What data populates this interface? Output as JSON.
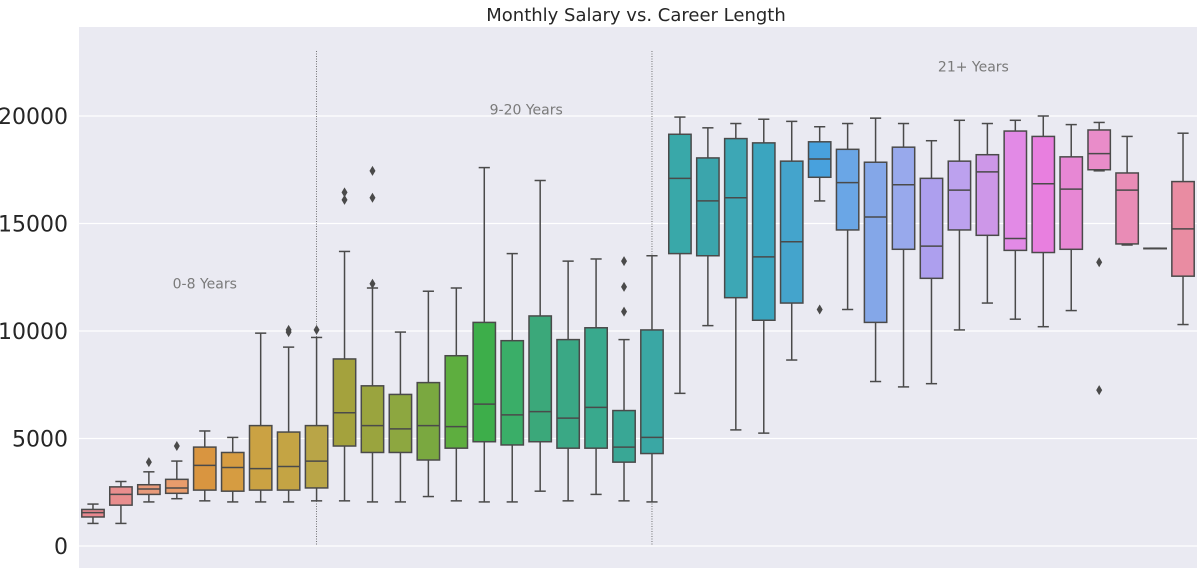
{
  "chart_data": {
    "type": "box",
    "title": "Monthly Salary vs. Career Length",
    "xlabel": "",
    "ylabel": "",
    "ylim": [
      -1000,
      24000
    ],
    "yticks": [
      0,
      5000,
      10000,
      15000,
      20000
    ],
    "grid": "horizontal",
    "groups": [
      {
        "label": "0-8 Years",
        "x": 4,
        "y": 12200
      },
      {
        "label": "9-20 Years",
        "x": 15.5,
        "y": 20300
      },
      {
        "label": "21+ Years",
        "x": 31.5,
        "y": 22300
      }
    ],
    "separators": [
      8.5,
      20.5
    ],
    "boxes": [
      {
        "q1": 1350,
        "median": 1550,
        "q3": 1700,
        "lo": 1050,
        "hi": 1950,
        "outliers": [],
        "color": "#e8888f"
      },
      {
        "q1": 1900,
        "median": 2400,
        "q3": 2750,
        "lo": 1050,
        "hi": 3000,
        "outliers": [],
        "color": "#e98e8e"
      },
      {
        "q1": 2400,
        "median": 2650,
        "q3": 2850,
        "lo": 2050,
        "hi": 3450,
        "outliers": [
          3900
        ],
        "color": "#e89a7a"
      },
      {
        "q1": 2450,
        "median": 2700,
        "q3": 3100,
        "lo": 2200,
        "hi": 3950,
        "outliers": [
          4650
        ],
        "color": "#e89c6c"
      },
      {
        "q1": 2600,
        "median": 3750,
        "q3": 4600,
        "lo": 2100,
        "hi": 5350,
        "outliers": [],
        "color": "#d99540"
      },
      {
        "q1": 2550,
        "median": 3650,
        "q3": 4350,
        "lo": 2050,
        "hi": 5050,
        "outliers": [],
        "color": "#d69c41"
      },
      {
        "q1": 2600,
        "median": 3600,
        "q3": 5600,
        "lo": 2050,
        "hi": 9900,
        "outliers": [],
        "color": "#cba243"
      },
      {
        "q1": 2600,
        "median": 3700,
        "q3": 5300,
        "lo": 2050,
        "hi": 9250,
        "outliers": [
          9950,
          10050
        ],
        "color": "#c4a444"
      },
      {
        "q1": 2700,
        "median": 3950,
        "q3": 5600,
        "lo": 2100,
        "hi": 9700,
        "outliers": [
          10050
        ],
        "color": "#b9a547"
      },
      {
        "q1": 4650,
        "median": 6200,
        "q3": 8700,
        "lo": 2100,
        "hi": 13700,
        "outliers": [
          16100,
          16450
        ],
        "color": "#a4a23d"
      },
      {
        "q1": 4350,
        "median": 5600,
        "q3": 7450,
        "lo": 2050,
        "hi": 12000,
        "outliers": [
          12200,
          16200,
          17450
        ],
        "color": "#9aa43e"
      },
      {
        "q1": 4350,
        "median": 5450,
        "q3": 7050,
        "lo": 2050,
        "hi": 9950,
        "outliers": [],
        "color": "#8da740"
      },
      {
        "q1": 4000,
        "median": 5600,
        "q3": 7600,
        "lo": 2300,
        "hi": 11850,
        "outliers": [],
        "color": "#7aa840"
      },
      {
        "q1": 4550,
        "median": 5550,
        "q3": 8850,
        "lo": 2100,
        "hi": 12000,
        "outliers": [],
        "color": "#5eae3f"
      },
      {
        "q1": 4850,
        "median": 6600,
        "q3": 10400,
        "lo": 2050,
        "hi": 17600,
        "outliers": [],
        "color": "#3dae4a"
      },
      {
        "q1": 4700,
        "median": 6100,
        "q3": 9550,
        "lo": 2050,
        "hi": 13600,
        "outliers": [],
        "color": "#3aae68"
      },
      {
        "q1": 4850,
        "median": 6250,
        "q3": 10700,
        "lo": 2550,
        "hi": 17000,
        "outliers": [],
        "color": "#3ba87a"
      },
      {
        "q1": 4550,
        "median": 5950,
        "q3": 9600,
        "lo": 2100,
        "hi": 13250,
        "outliers": [],
        "color": "#3aa885"
      },
      {
        "q1": 4550,
        "median": 6450,
        "q3": 10150,
        "lo": 2400,
        "hi": 13350,
        "outliers": [],
        "color": "#39a98d"
      },
      {
        "q1": 3900,
        "median": 4600,
        "q3": 6300,
        "lo": 2100,
        "hi": 9600,
        "outliers": [
          10900,
          12050,
          13250
        ],
        "color": "#39a795"
      },
      {
        "q1": 4300,
        "median": 5050,
        "q3": 10050,
        "lo": 2050,
        "hi": 13500,
        "outliers": [],
        "color": "#3aa7a4"
      },
      {
        "q1": 13600,
        "median": 17100,
        "q3": 19150,
        "lo": 7100,
        "hi": 19950,
        "outliers": [],
        "color": "#39a8a9"
      },
      {
        "q1": 13500,
        "median": 16050,
        "q3": 18050,
        "lo": 10250,
        "hi": 19450,
        "outliers": [],
        "color": "#3ba5ac"
      },
      {
        "q1": 11550,
        "median": 16200,
        "q3": 18950,
        "lo": 5400,
        "hi": 19650,
        "outliers": [],
        "color": "#3da7b5"
      },
      {
        "q1": 10500,
        "median": 13450,
        "q3": 18750,
        "lo": 5250,
        "hi": 19850,
        "outliers": [],
        "color": "#3ba5bf"
      },
      {
        "q1": 11300,
        "median": 14150,
        "q3": 17900,
        "lo": 8650,
        "hi": 19750,
        "outliers": [],
        "color": "#44a4cc"
      },
      {
        "q1": 17150,
        "median": 18000,
        "q3": 18800,
        "lo": 16050,
        "hi": 19500,
        "outliers": [
          11000
        ],
        "color": "#48a1dd"
      },
      {
        "q1": 14700,
        "median": 16900,
        "q3": 18450,
        "lo": 11000,
        "hi": 19650,
        "outliers": [],
        "color": "#6aa6e6"
      },
      {
        "q1": 10400,
        "median": 15300,
        "q3": 17850,
        "lo": 7650,
        "hi": 19900,
        "outliers": [],
        "color": "#84a7e8"
      },
      {
        "q1": 13800,
        "median": 16800,
        "q3": 18550,
        "lo": 7400,
        "hi": 19650,
        "outliers": [],
        "color": "#98a9ec"
      },
      {
        "q1": 12450,
        "median": 13950,
        "q3": 17100,
        "lo": 7550,
        "hi": 18850,
        "outliers": [],
        "color": "#ad9fee"
      },
      {
        "q1": 14700,
        "median": 16550,
        "q3": 17900,
        "lo": 10050,
        "hi": 19800,
        "outliers": [],
        "color": "#bca1ee"
      },
      {
        "q1": 14450,
        "median": 17400,
        "q3": 18200,
        "lo": 11300,
        "hi": 19650,
        "outliers": [],
        "color": "#cd97e8"
      },
      {
        "q1": 13750,
        "median": 14300,
        "q3": 19300,
        "lo": 10550,
        "hi": 19800,
        "outliers": [],
        "color": "#e28ae6"
      },
      {
        "q1": 13650,
        "median": 16850,
        "q3": 19050,
        "lo": 10200,
        "hi": 20000,
        "outliers": [],
        "color": "#e87fdf"
      },
      {
        "q1": 13800,
        "median": 16600,
        "q3": 18100,
        "lo": 10950,
        "hi": 19600,
        "outliers": [],
        "color": "#e787d4"
      },
      {
        "q1": 17500,
        "median": 18250,
        "q3": 19350,
        "lo": 17450,
        "hi": 19700,
        "outliers": [
          13200,
          7250
        ],
        "color": "#e98cc9"
      },
      {
        "q1": 14050,
        "median": 16550,
        "q3": 17350,
        "lo": 14000,
        "hi": 19050,
        "outliers": [],
        "color": "#e98cb6"
      },
      {
        "q1": 13850,
        "median": 13850,
        "q3": 13850,
        "lo": 13850,
        "hi": 13850,
        "outliers": [],
        "color": "#e98caa"
      },
      {
        "q1": 12550,
        "median": 14750,
        "q3": 16950,
        "lo": 10300,
        "hi": 19200,
        "outliers": [],
        "color": "#e98ca2"
      }
    ]
  }
}
